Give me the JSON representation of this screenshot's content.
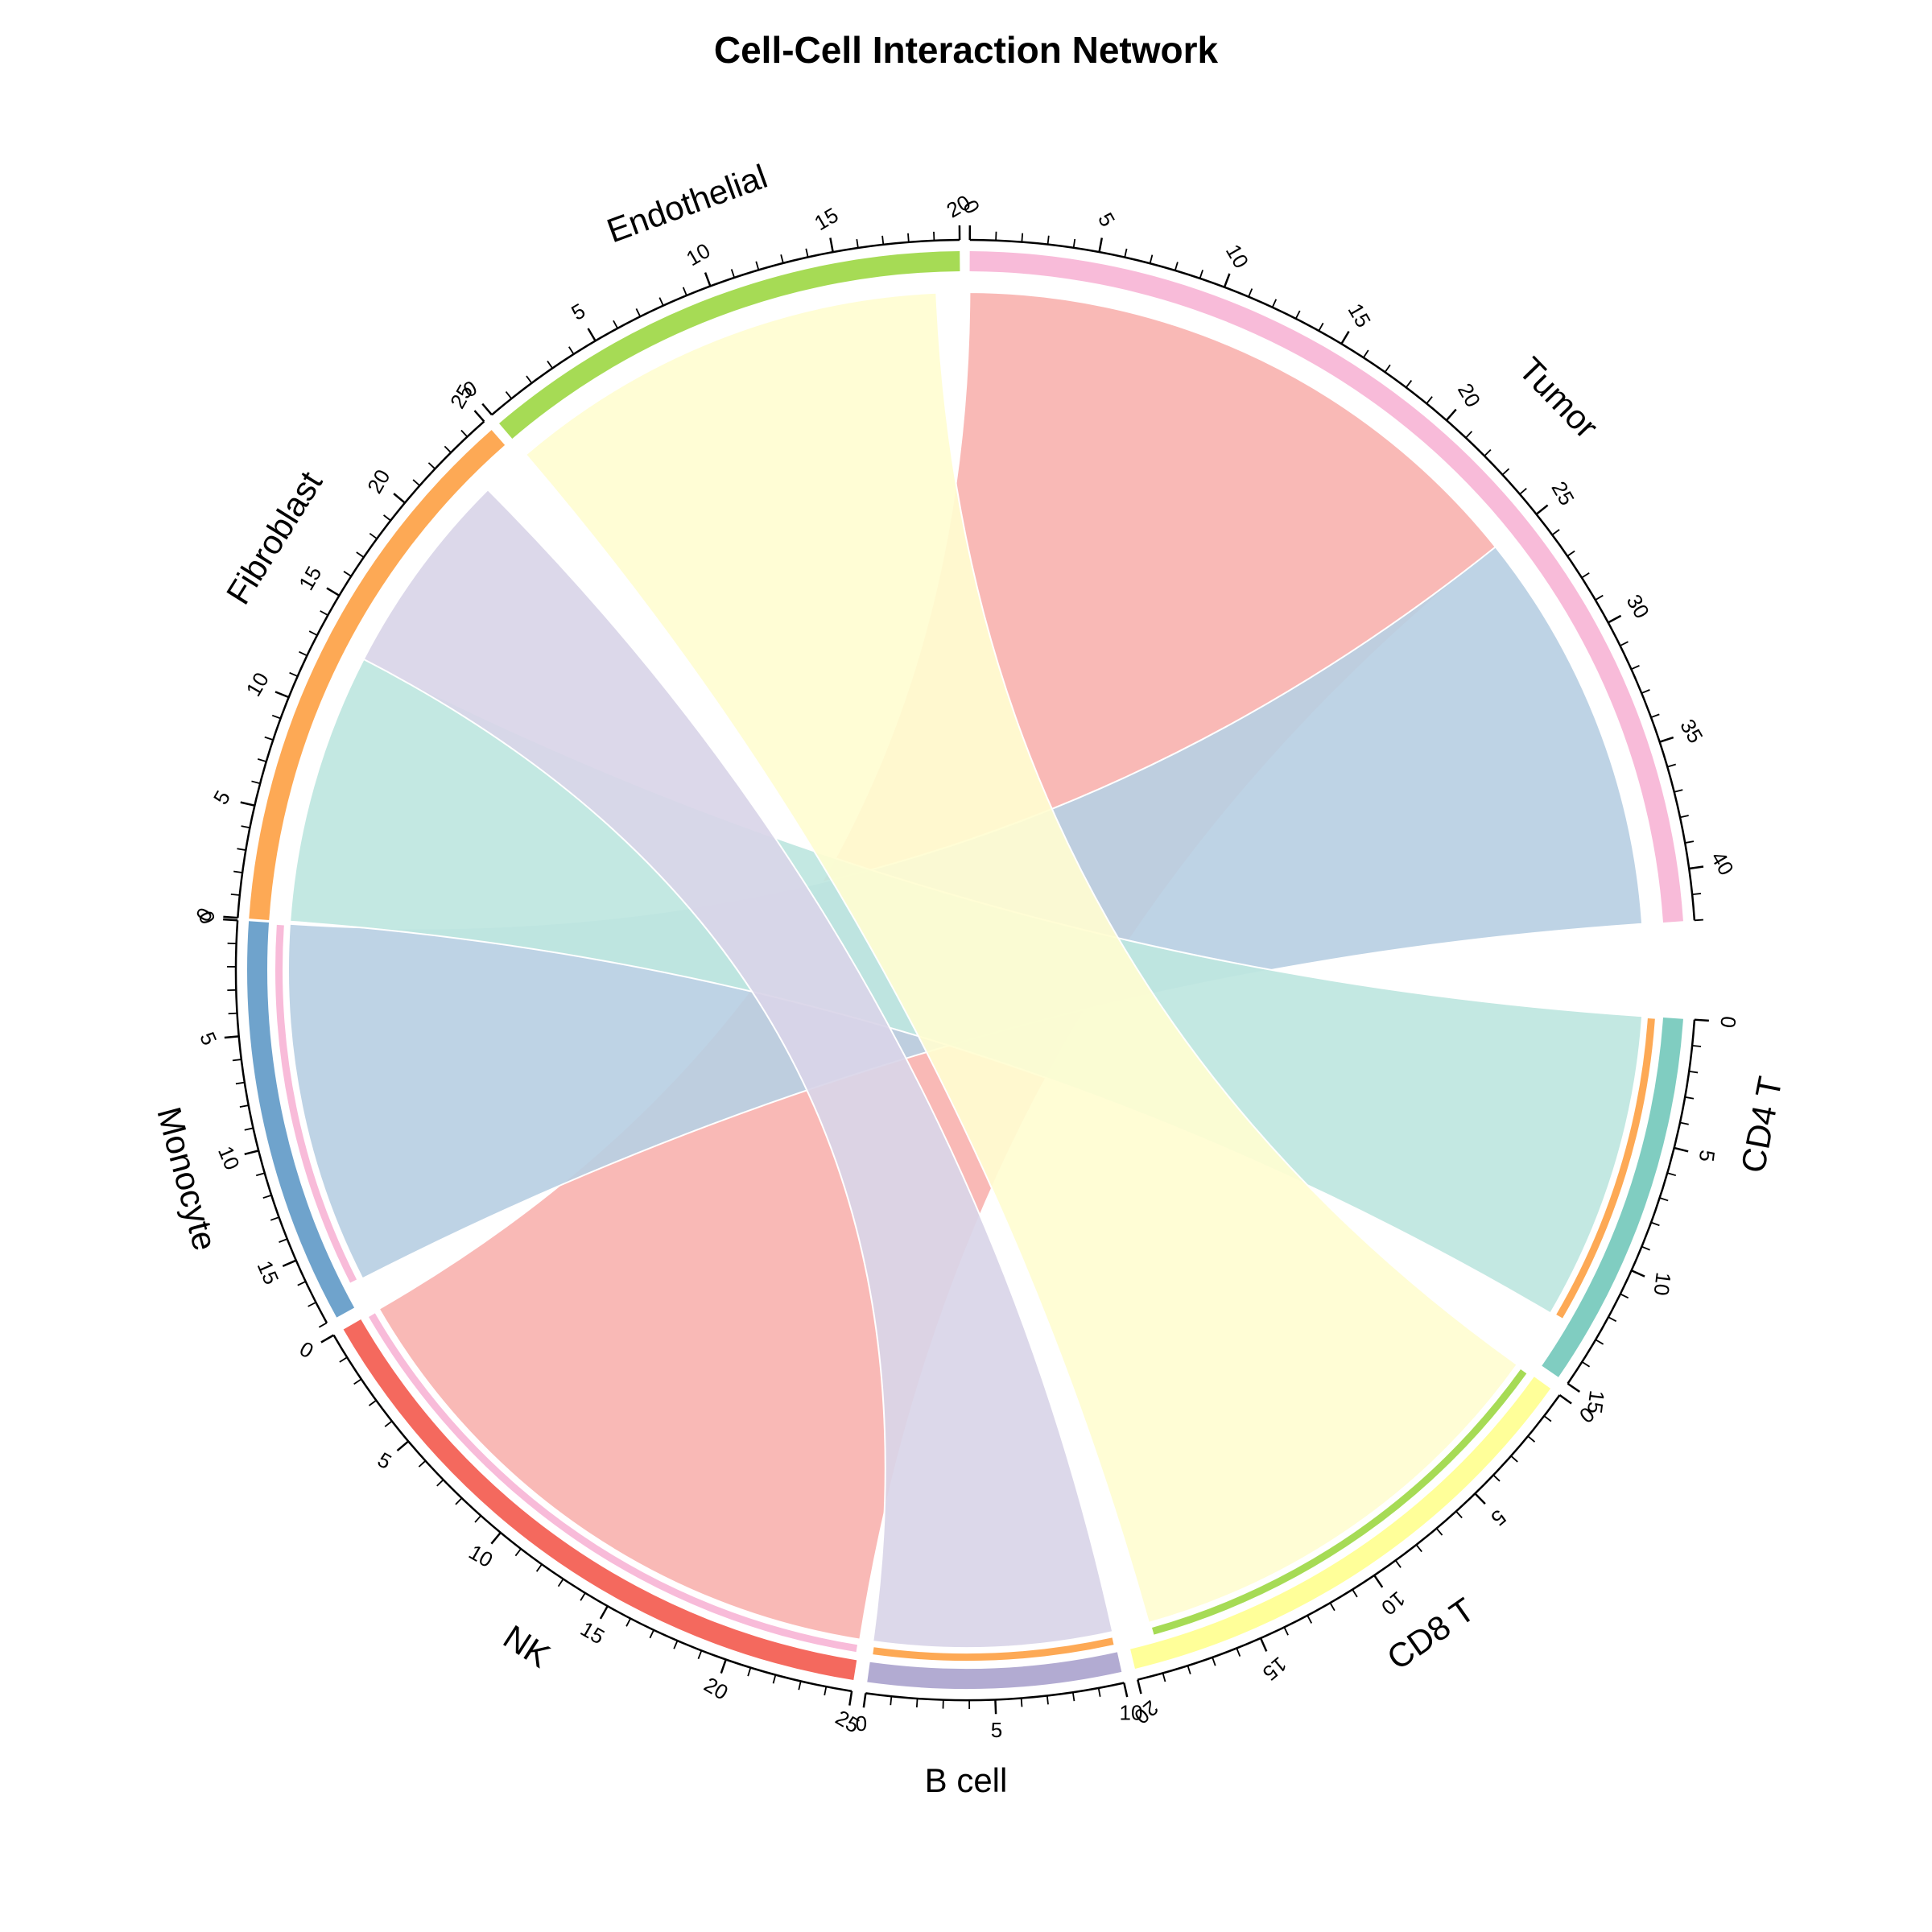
{
  "chart_data": {
    "type": "chord",
    "title": "Cell-Cell Interaction Network",
    "sectors": [
      {
        "name": "Tumor",
        "total": 42,
        "color": "#F8BBD9"
      },
      {
        "name": "CD4 T",
        "total": 15,
        "color": "#80CDC1"
      },
      {
        "name": "CD8 T",
        "total": 20,
        "color": "#FFFF99"
      },
      {
        "name": "B cell",
        "total": 10,
        "color": "#B2ABD2"
      },
      {
        "name": "NK",
        "total": 25,
        "color": "#F4695E"
      },
      {
        "name": "Monocyte",
        "total": 18,
        "color": "#6FA3CC"
      },
      {
        "name": "Fibroblast",
        "total": 25,
        "color": "#FDA955"
      },
      {
        "name": "Endothelial",
        "total": 20,
        "color": "#A6DB55"
      }
    ],
    "links": [
      {
        "from": "Tumor",
        "to": "NK",
        "value": 25,
        "color": "#F8B3B0"
      },
      {
        "from": "Tumor",
        "to": "Monocyte",
        "value": 17,
        "color": "#B8CFE3"
      },
      {
        "from": "Fibroblast",
        "to": "CD4 T",
        "value": 13,
        "color": "#BEE6DF"
      },
      {
        "from": "Fibroblast",
        "to": "B cell",
        "value": 10,
        "color": "#D9D5E8"
      },
      {
        "from": "Endothelial",
        "to": "CD8 T",
        "value": 19,
        "color": "#FFFDD1"
      }
    ]
  }
}
